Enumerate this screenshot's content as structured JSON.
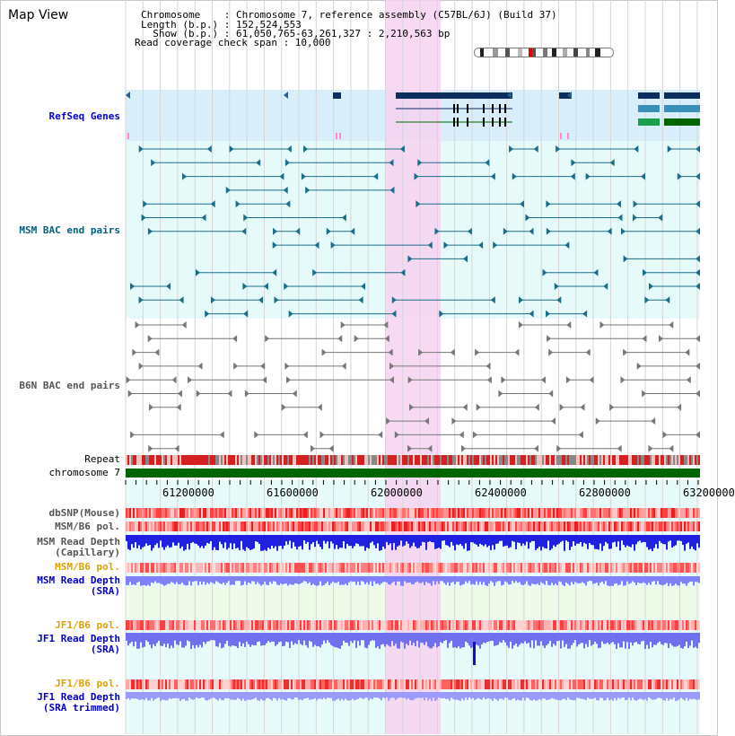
{
  "header": {
    "title": "Map View",
    "chromosome_line": "Chromosome    : Chromosome 7, reference assembly (C57BL/6J) (Build 37)",
    "length_line": "Length (b.p.) : 152,524,553",
    "show_line": "  Show (b.p.) : 61,050,765-63,261,327 : 2,210,563 bp",
    "coverage_line": "Read coverage check span : 10,000"
  },
  "tracks": {
    "refseq": "RefSeq Genes",
    "msm_bac": "MSM BAC end pairs",
    "b6n_bac": "B6N BAC end pairs",
    "repeat": "Repeat",
    "chromosome": "chromosome 7",
    "dbsnp": "dbSNP(Mouse)",
    "msm_b6_pol_1": "MSM/B6 pol.",
    "msm_read_depth_cap": "MSM Read Depth\n(Capillary)",
    "msm_b6_pol_2": "MSM/B6 pol.",
    "msm_read_depth_sra": "MSM Read Depth\n(SRA)",
    "jf1_b6_pol_1": "JF1/B6 pol.",
    "jf1_read_depth_sra": "JF1 Read Depth\n(SRA)",
    "jf1_b6_pol_2": "JF1/B6 pol.",
    "jf1_read_depth_trim": "JF1 Read Depth\n(SRA trimmed)"
  },
  "axis": {
    "ticks": [
      "61200000",
      "61600000",
      "62000000",
      "62400000",
      "62800000",
      "63200000"
    ]
  },
  "colors": {
    "highlight": "#f7d2f1",
    "refseq_bg": "#d8eefa",
    "bac_bg": "#e6fafa",
    "label_blue": "#0000cc",
    "label_teal": "#006080",
    "label_gray": "#555555",
    "label_orange": "#e0a000"
  }
}
